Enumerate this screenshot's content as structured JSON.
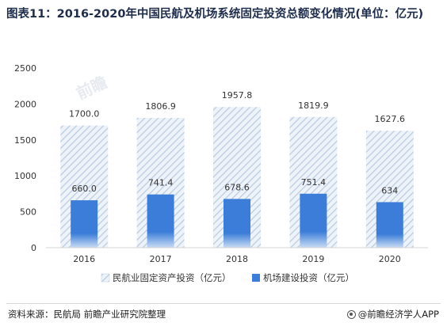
{
  "title": "图表11：2016-2020年中国民航及机场系统固定投资总额变化情况(单位：亿元)",
  "source": "资料来源：民航局 前瞻产业研究院整理",
  "brand": "@前瞻经济学人APP",
  "colors": {
    "series_fixed": "#c8d6e8",
    "series_airport": "#3c7fd8",
    "axis": "#d9d9d9",
    "text": "#333333"
  },
  "chart_data": {
    "type": "bar",
    "categories": [
      "2016",
      "2017",
      "2018",
      "2019",
      "2020"
    ],
    "series": [
      {
        "name": "民航业固定资产投资（亿元）",
        "values": [
          1700.0,
          1806.9,
          1957.8,
          1819.9,
          1627.6
        ],
        "labels": [
          "1700.0",
          "1806.9",
          "1957.8",
          "1819.9",
          "1627.6"
        ],
        "style": "hatched"
      },
      {
        "name": "机场建设投资（亿元）",
        "values": [
          660.0,
          741.4,
          678.6,
          751.4,
          634
        ],
        "labels": [
          "660.0",
          "741.4",
          "678.6",
          "751.4",
          "634"
        ],
        "style": "solid"
      }
    ],
    "ylim": [
      0,
      2500
    ],
    "yticks": [
      0,
      500,
      1000,
      1500,
      2000,
      2500
    ],
    "legend": "bottom",
    "grid": false
  }
}
